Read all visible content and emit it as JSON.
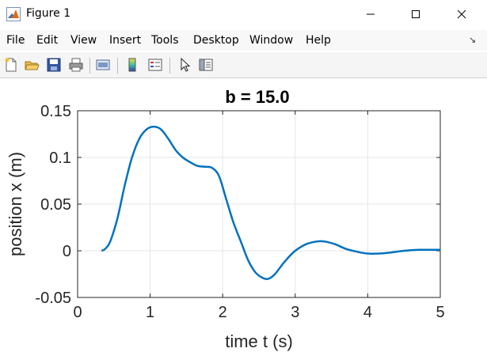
{
  "window": {
    "title": "Figure 1",
    "controls": {
      "minimize": "minimize",
      "maximize": "maximize",
      "close": "close"
    }
  },
  "menubar": {
    "items": [
      "File",
      "Edit",
      "View",
      "Insert",
      "Tools",
      "Desktop",
      "Window",
      "Help"
    ]
  },
  "toolbar": {
    "icons": [
      "new-figure-icon",
      "open-file-icon",
      "save-icon",
      "print-icon",
      "link-plot-icon",
      "colorbar-icon",
      "legend-icon",
      "pointer-icon",
      "property-inspector-icon"
    ]
  },
  "colors": {
    "line": "#0072BD",
    "grid": "#e6e6e6",
    "axes": "#262626"
  },
  "chart_data": {
    "type": "line",
    "title": "b = 15.0",
    "xlabel": "time  t  (s)",
    "ylabel": "position  x  (m)",
    "xlim": [
      0,
      5
    ],
    "ylim": [
      -0.05,
      0.15
    ],
    "xticks": [
      "0",
      "1",
      "2",
      "3",
      "4",
      "5"
    ],
    "yticks": [
      "-0.05",
      "0",
      "0.05",
      "0.1",
      "0.15"
    ],
    "grid": true,
    "series": [
      {
        "x": [
          0.33,
          0.38,
          0.45,
          0.55,
          0.65,
          0.75,
          0.85,
          0.95,
          1.05,
          1.15,
          1.25,
          1.35,
          1.45,
          1.55,
          1.65,
          1.75,
          1.85,
          1.95,
          2.05,
          2.15,
          2.25,
          2.35,
          2.45,
          2.55,
          2.63,
          2.72,
          2.85,
          3.0,
          3.15,
          3.3,
          3.4,
          3.55,
          3.7,
          3.85,
          4.0,
          4.15,
          4.3,
          4.5,
          4.7,
          4.9,
          5.0
        ],
        "y": [
          0.0,
          0.002,
          0.01,
          0.035,
          0.07,
          0.1,
          0.12,
          0.13,
          0.133,
          0.13,
          0.12,
          0.108,
          0.1,
          0.095,
          0.091,
          0.09,
          0.089,
          0.08,
          0.055,
          0.03,
          0.01,
          -0.01,
          -0.023,
          -0.029,
          -0.03,
          -0.025,
          -0.012,
          0.0,
          0.007,
          0.01,
          0.01,
          0.007,
          0.002,
          -0.001,
          -0.003,
          -0.003,
          -0.002,
          0.0,
          0.001,
          0.001,
          0.001
        ]
      }
    ]
  }
}
